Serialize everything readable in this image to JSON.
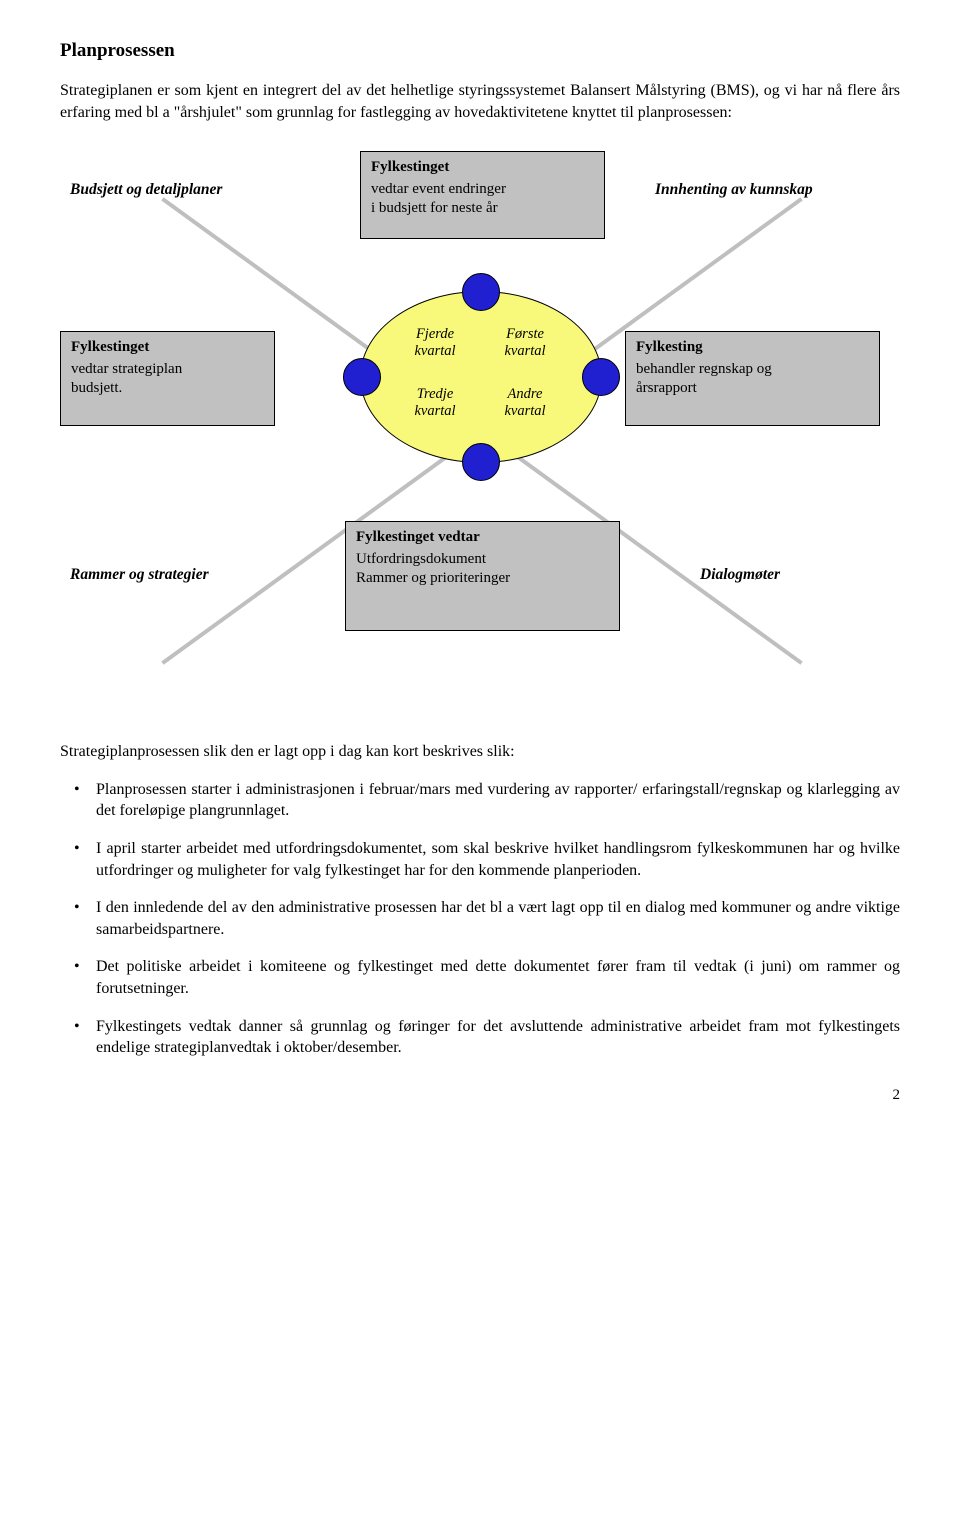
{
  "title": "Planprosessen",
  "intro": "Strategiplanen er som kjent en integrert del av det helhetlige styringssystemet Balansert Målstyring (BMS), og vi har nå flere års erfaring med bl a \"årshjulet\" som grunnlag for fastlegging av hovedaktivitetene knyttet til planprosessen:",
  "corners": {
    "tl": "Budsjett og detaljplaner",
    "tr": "Innhenting av kunnskap",
    "bl": "Rammer og strategier",
    "br": "Dialogmøter"
  },
  "boxes": {
    "top": {
      "title": "Fylkestinget",
      "l1": "vedtar event endringer",
      "l2": "i budsjett for neste år"
    },
    "left": {
      "title": "Fylkestinget",
      "l1": "vedtar strategiplan",
      "l2": "budsjett."
    },
    "right": {
      "title": "Fylkesting",
      "l1": "behandler regnskap og",
      "l2": "årsrapport"
    },
    "bottom": {
      "title": "Fylkestinget vedtar",
      "l1": "Utfordringsdokument",
      "l2": "Rammer og prioriteringer"
    }
  },
  "quadrants": {
    "tl1": "Fjerde",
    "tl2": "kvartal",
    "tr1": "Første",
    "tr2": "kvartal",
    "bl1": "Tredje",
    "bl2": "kvartal",
    "br1": "Andre",
    "br2": "kvartal"
  },
  "colors": {
    "grey": "#c1c1c1",
    "line_grey": "#bfbfbf",
    "yellow": "#f8f87a",
    "blue": "#2020d0",
    "black": "#000000",
    "white": "#ffffff"
  },
  "after_diagram": "Strategiplanprosessen slik den er lagt opp i dag kan kort beskrives slik:",
  "bullets": [
    "Planprosessen starter i administrasjonen i februar/mars med vurdering av rapporter/ erfaringstall/regnskap og klarlegging av det foreløpige plangrunnlaget.",
    "I april starter arbeidet med utfordringsdokumentet, som skal beskrive hvilket handlingsrom fylkeskommunen har og hvilke utfordringer og muligheter for valg fylkestinget har for den kommende planperioden.",
    "I den innledende del av den administrative prosessen har det bl a vært lagt opp til en dialog med kommuner og andre viktige samarbeidspartnere.",
    "Det politiske arbeidet i komiteene og fylkestinget med dette dokumentet fører fram til vedtak (i  juni)  om rammer og forutsetninger.",
    "Fylkestingets vedtak danner så grunnlag og føringer for det avsluttende administrative arbeidet fram mot fylkestingets endelige strategiplanvedtak  i oktober/desember."
  ],
  "page_number": "2"
}
